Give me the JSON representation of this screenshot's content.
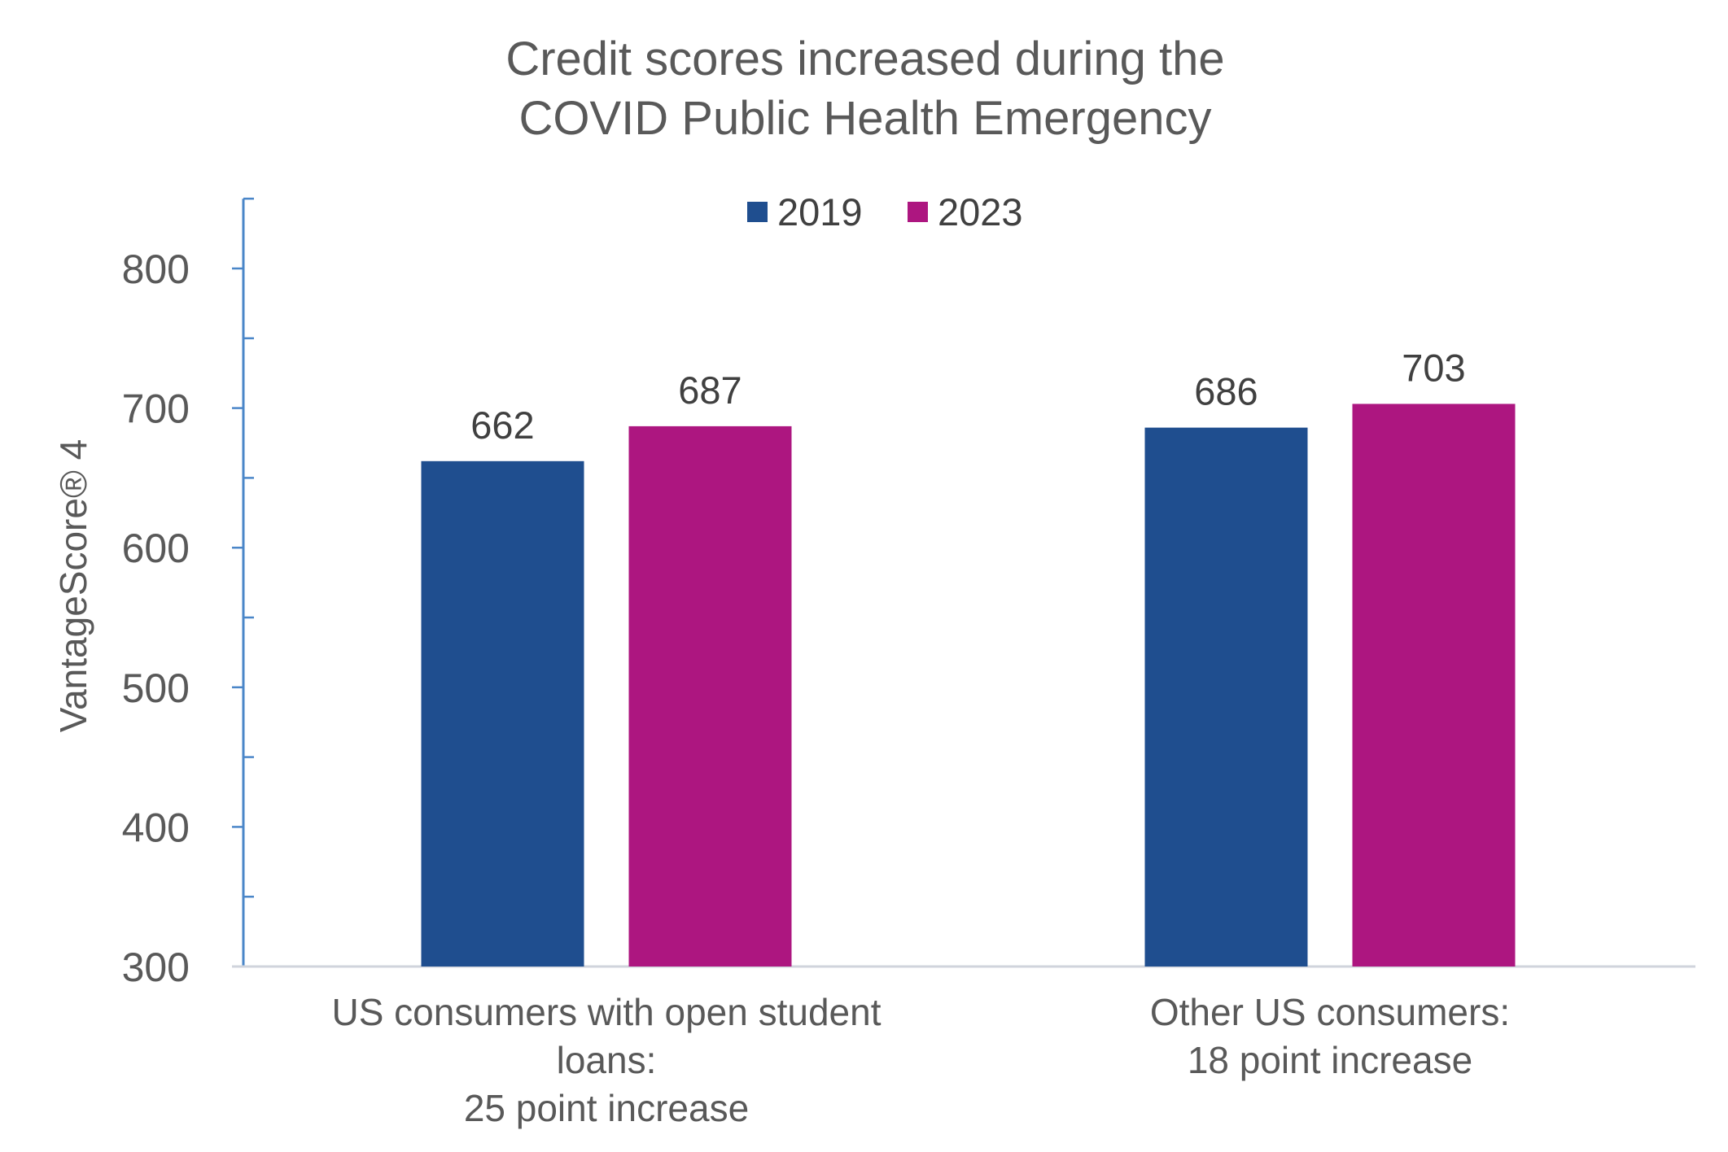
{
  "chart_data": {
    "type": "bar",
    "title": [
      "Credit scores increased during the",
      "COVID Public Health Emergency"
    ],
    "ylabel": "VantageScore® 4",
    "xlabel": "",
    "ylim": [
      300,
      850
    ],
    "y_ticks": [
      300,
      400,
      500,
      600,
      700,
      800
    ],
    "grid": false,
    "legend_position": "top",
    "categories": [
      [
        "US consumers with open student",
        "loans:",
        "25 point increase"
      ],
      [
        "Other US consumers:",
        "18 point increase"
      ]
    ],
    "series": [
      {
        "name": "2019",
        "color": "#1F4E8F",
        "values": [
          662,
          686
        ]
      },
      {
        "name": "2023",
        "color": "#AD1680",
        "values": [
          687,
          703
        ]
      }
    ],
    "axis_color": "#4A86C8"
  }
}
